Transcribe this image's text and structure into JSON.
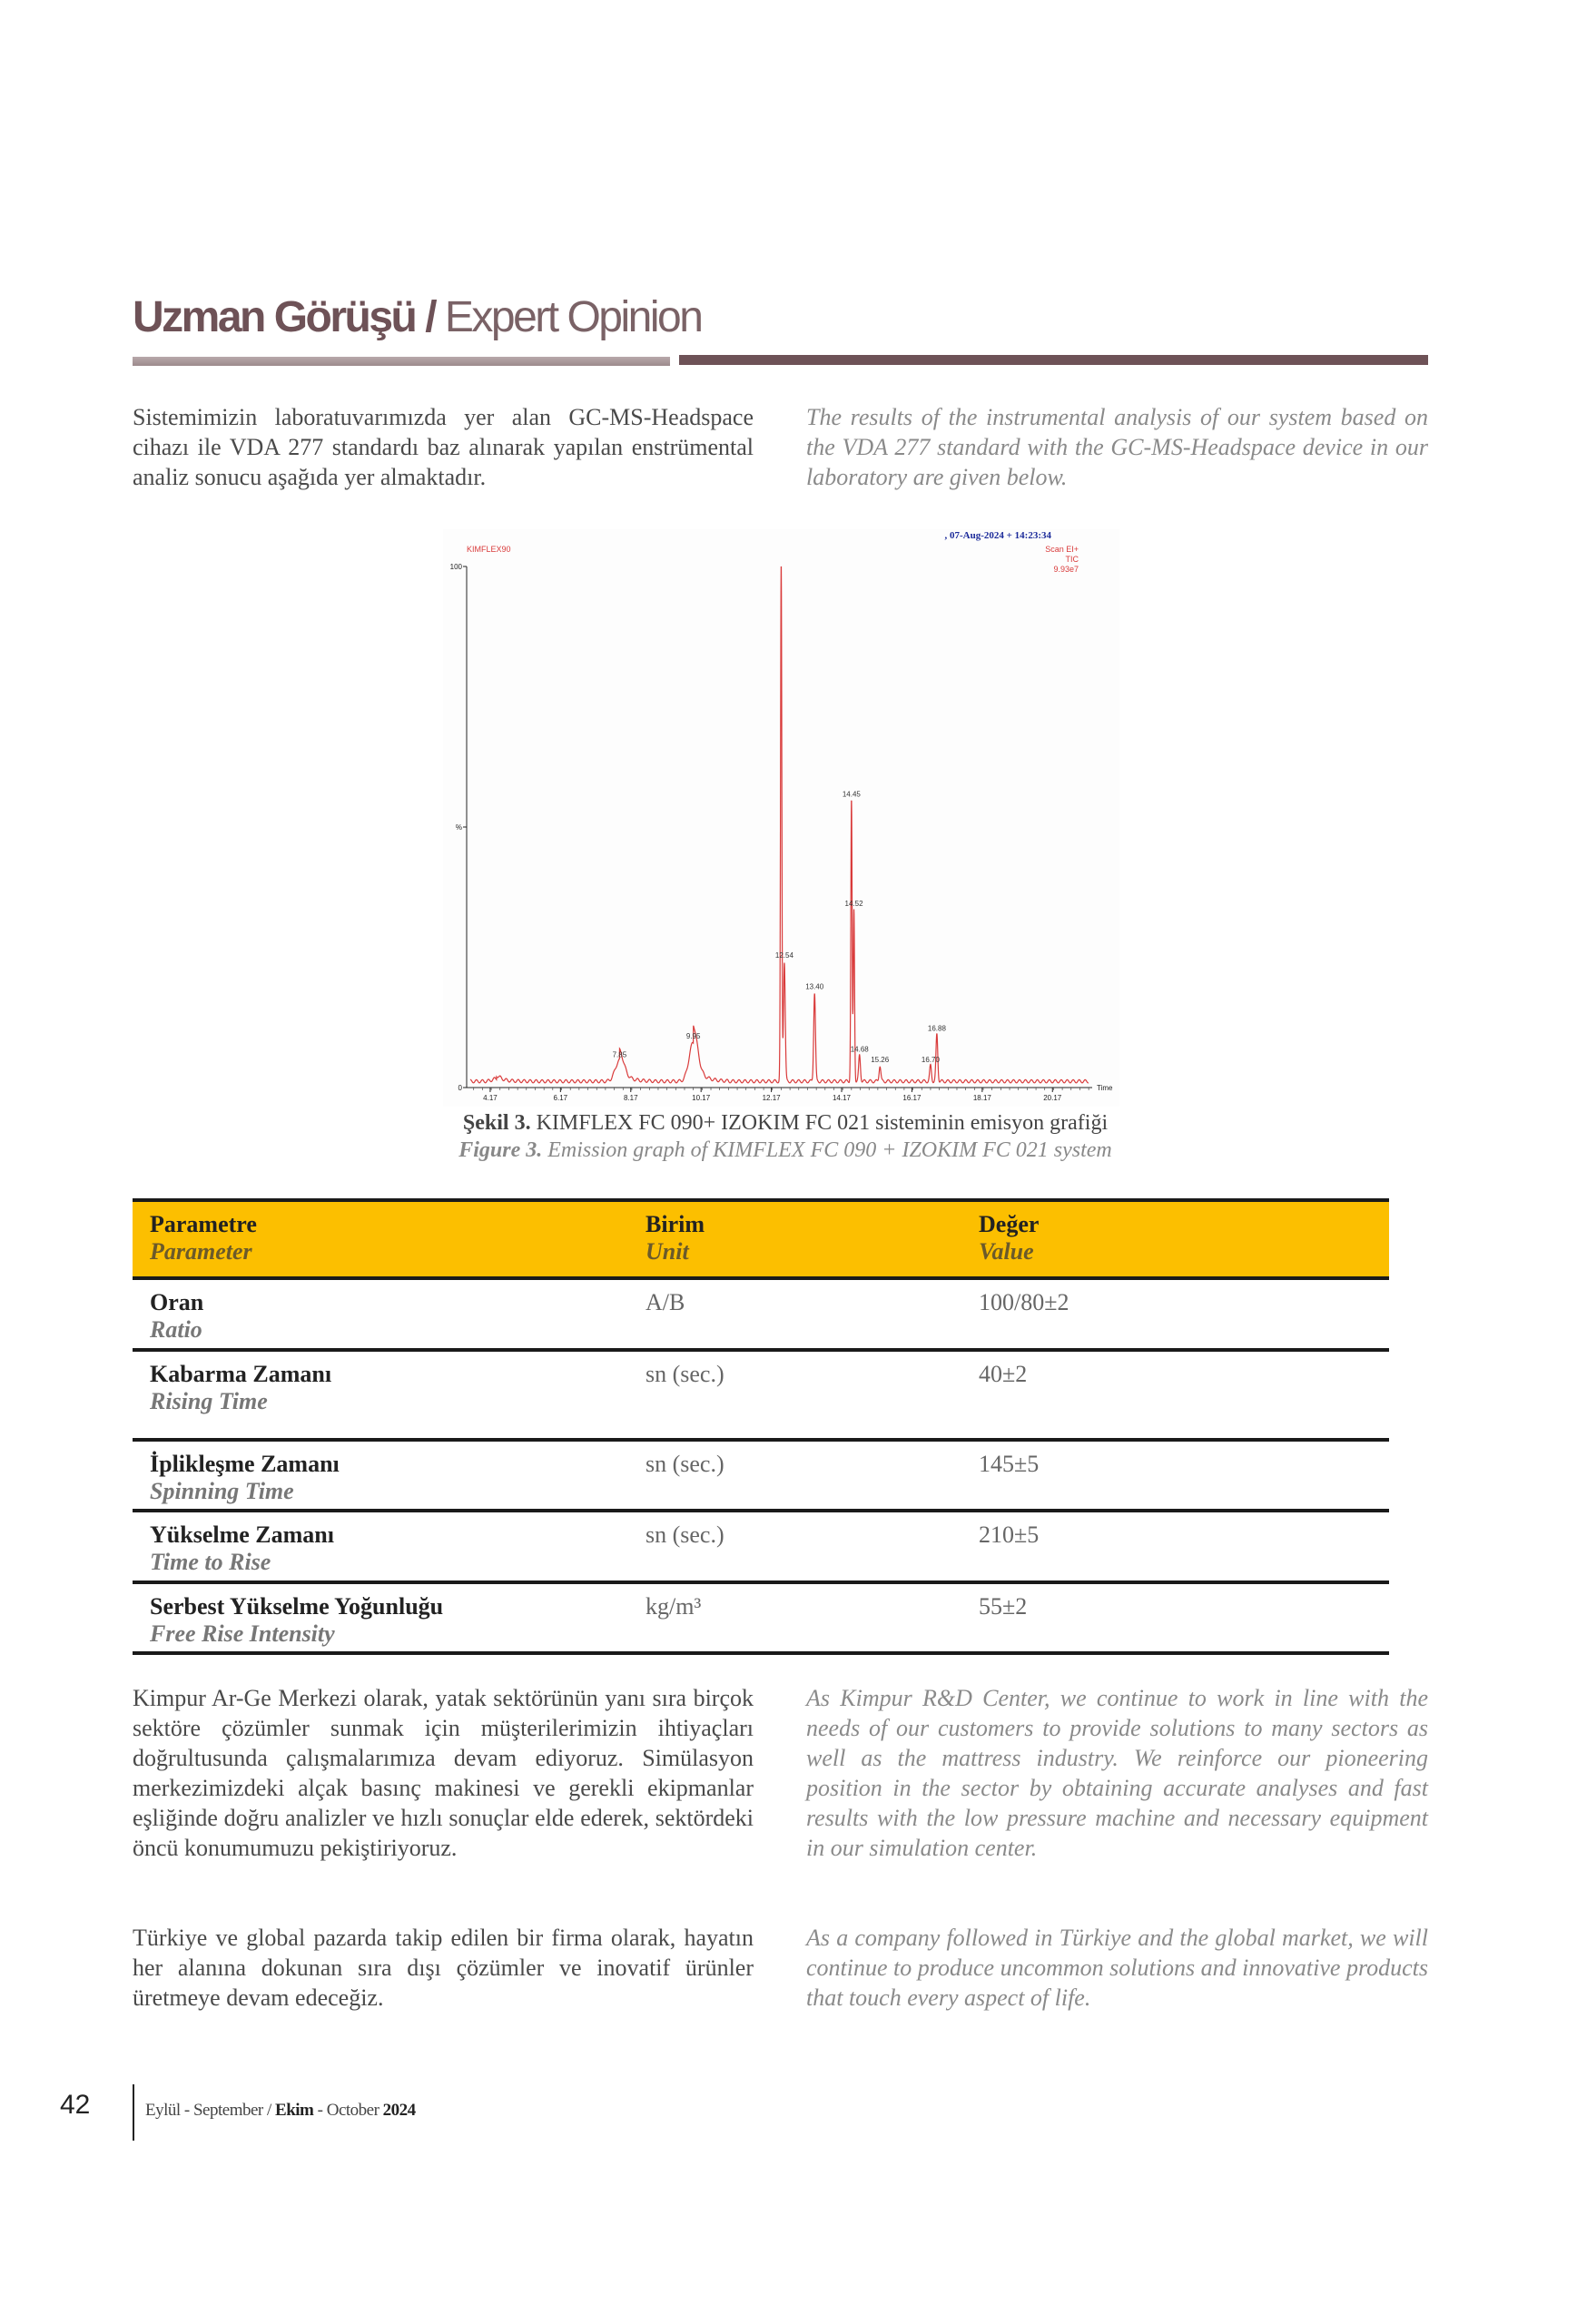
{
  "header": {
    "title_tr": "Uzman Görüşü /",
    "title_en": "Expert Opinion"
  },
  "intro": {
    "tr": "Sistemimizin laboratuvarımızda yer alan GC-MS-Headspace cihazı ile VDA 277 standardı baz alınarak yapılan enstrümental analiz sonucu aşağıda yer almaktadır.",
    "en": "The results of the instrumental analysis of our system based on the VDA 277 standard with the GC-MS-Headspace device in our laboratory are given below."
  },
  "chart_data": {
    "type": "line",
    "sample": "KIMFLEX90",
    "datetime": ", 07-Aug-2024 + 14:23:34",
    "scan": "Scan EI+",
    "trace": "TIC",
    "max_intensity": "9.93e7",
    "xlabel": "Time",
    "ylabel": "%",
    "y_ticks": [
      "0",
      "%",
      "100"
    ],
    "ylim": [
      0,
      100
    ],
    "xlim": [
      3.5,
      21.3
    ],
    "x_ticks": [
      "4.17",
      "6.17",
      "8.17",
      "10.17",
      "12.17",
      "14.17",
      "16.17",
      "18.17",
      "20.17"
    ],
    "color": "#d93a3a",
    "peaks": [
      {
        "x": 4.35,
        "y": 1.5,
        "label": ""
      },
      {
        "x": 7.85,
        "y": 5,
        "label": "7.85"
      },
      {
        "x": 9.95,
        "y": 8.5,
        "label": "9.95"
      },
      {
        "x": 12.45,
        "y": 100,
        "label": ""
      },
      {
        "x": 12.54,
        "y": 24,
        "label": "12.54"
      },
      {
        "x": 13.4,
        "y": 18,
        "label": "13.40"
      },
      {
        "x": 14.45,
        "y": 55,
        "label": "14.45"
      },
      {
        "x": 14.52,
        "y": 34,
        "label": "14.52"
      },
      {
        "x": 14.68,
        "y": 6,
        "label": "14.68"
      },
      {
        "x": 15.26,
        "y": 4,
        "label": "15.26"
      },
      {
        "x": 16.7,
        "y": 4,
        "label": "16.70"
      },
      {
        "x": 16.88,
        "y": 10,
        "label": "16.88"
      }
    ]
  },
  "caption": {
    "tr_bold": "Şekil 3.",
    "tr": " KIMFLEX FC 090+ IZOKIM FC 021 sisteminin emisyon grafiği",
    "en_bold": "Figure 3.",
    "en": " Emission graph of KIMFLEX FC 090 + IZOKIM FC 021 system"
  },
  "table": {
    "headers": [
      {
        "tr": "Parametre",
        "en": "Parameter"
      },
      {
        "tr": "Birim",
        "en": "Unit"
      },
      {
        "tr": "Değer",
        "en": "Value"
      }
    ],
    "rows": [
      {
        "tr": "Oran",
        "en": "Ratio",
        "unit": "A/B",
        "value": "100/80±2"
      },
      {
        "tr": "Kabarma Zamanı",
        "en": "Rising Time",
        "unit": "sn (sec.)",
        "value": "40±2"
      },
      {
        "tr": "İplikleşme Zamanı",
        "en": "Spinning Time",
        "unit": "sn (sec.)",
        "value": "145±5"
      },
      {
        "tr": "Yükselme Zamanı",
        "en": "Time to Rise",
        "unit": "sn (sec.)",
        "value": "210±5"
      },
      {
        "tr": "Serbest Yükselme Yoğunluğu",
        "en": "Free Rise Intensity",
        "unit": "kg/m³",
        "value": "55±2"
      }
    ],
    "header_color": "#fcbf00"
  },
  "body": {
    "p1_tr": "Kimpur Ar-Ge Merkezi olarak, yatak sektörünün yanı sıra birçok sektöre çözümler sunmak için müşterilerimizin ihtiyaçları doğrultusunda çalışmalarımıza devam ediyoruz. Simülasyon merkezimizdeki alçak basınç makinesi ve gerekli ekipmanlar eşliğinde doğru analizler ve hızlı sonuçlar elde ederek, sektördeki öncü konumumuzu pekiştiriyoruz.",
    "p1_en": "As Kimpur R&D Center, we continue to work in line with the needs of our customers to provide solutions to many sectors as well as the mattress industry. We reinforce our pioneering position in the sector by obtaining accurate analyses and fast results with the low pressure machine and necessary equipment in our simulation center.",
    "p2_tr": "Türkiye ve global pazarda takip edilen bir firma olarak, hayatın her alanına dokunan sıra dışı çözümler ve inovatif ürünler üretmeye devam edeceğiz.",
    "p2_en": "As a company followed in Türkiye and the global market, we will continue to produce uncommon solutions and innovative products that touch every aspect of life."
  },
  "footer": {
    "page": "42",
    "issue_a": "Eylül - September / ",
    "issue_b": "Ekim",
    "issue_c": " - October ",
    "year": "2024"
  },
  "colors": {
    "brand": "#6e5257",
    "accent": "#fcbf00"
  }
}
